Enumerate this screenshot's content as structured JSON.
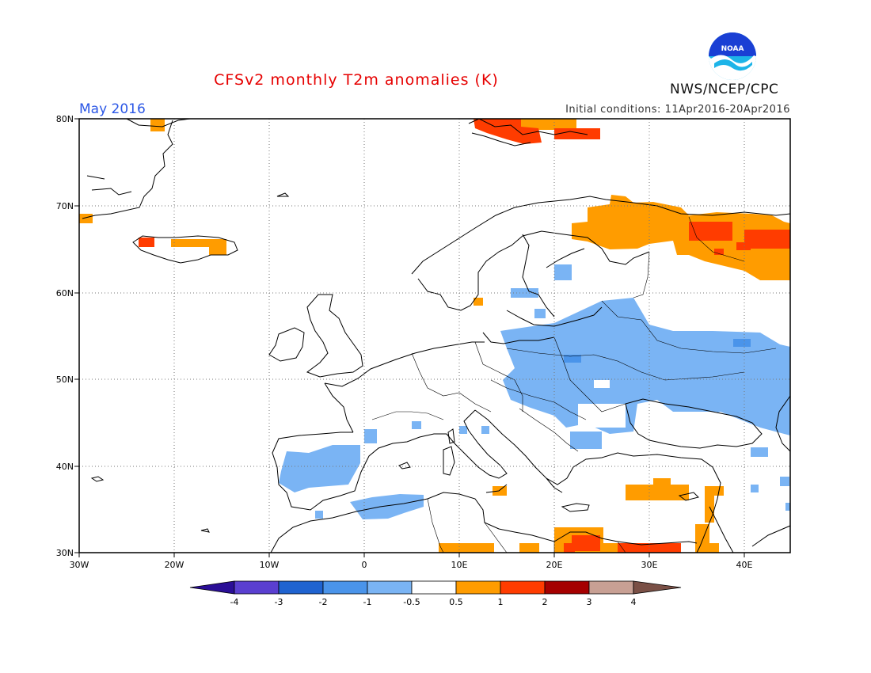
{
  "header": {
    "title": "CFSv2 monthly T2m anomalies (K)",
    "month": "May 2016",
    "initial_conditions": "Initial conditions: 11Apr2016-20Apr2016",
    "agency": "NWS/NCEP/CPC",
    "logo_text": "NOAA"
  },
  "map": {
    "region": "Europe / Mediterranean",
    "lon_range": [
      -30,
      45
    ],
    "lat_range": [
      30,
      80
    ],
    "lat_labels": [
      "80N",
      "70N",
      "60N",
      "50N",
      "40N",
      "30N"
    ],
    "lon_labels": [
      "30W",
      "20W",
      "10W",
      "0",
      "10E",
      "20E",
      "30E",
      "40E"
    ],
    "gridlines": "dotted"
  },
  "legend": {
    "bins": [
      {
        "label": "-4",
        "color": "#2a0e96"
      },
      {
        "label": "-3",
        "color": "#5a3fd0"
      },
      {
        "label": "-2",
        "color": "#1f63d0"
      },
      {
        "label": "-1",
        "color": "#4a94ea"
      },
      {
        "label": "-0.5",
        "color": "#7ab4f4"
      },
      {
        "label": "0.5",
        "color": "#ffffff"
      },
      {
        "label": "1",
        "color": "#ff9c00"
      },
      {
        "label": "2",
        "color": "#ff3c00"
      },
      {
        "label": "3",
        "color": "#a50000"
      },
      {
        "label": "4",
        "color": "#c8a094"
      }
    ],
    "end_below_color": "#2a0e96",
    "end_above_color": "#7a5046"
  },
  "colors": {
    "light_blue": "#7ab4f4",
    "mid_blue": "#4a94ea",
    "orange": "#ff9c00",
    "red": "#ff3c00"
  }
}
